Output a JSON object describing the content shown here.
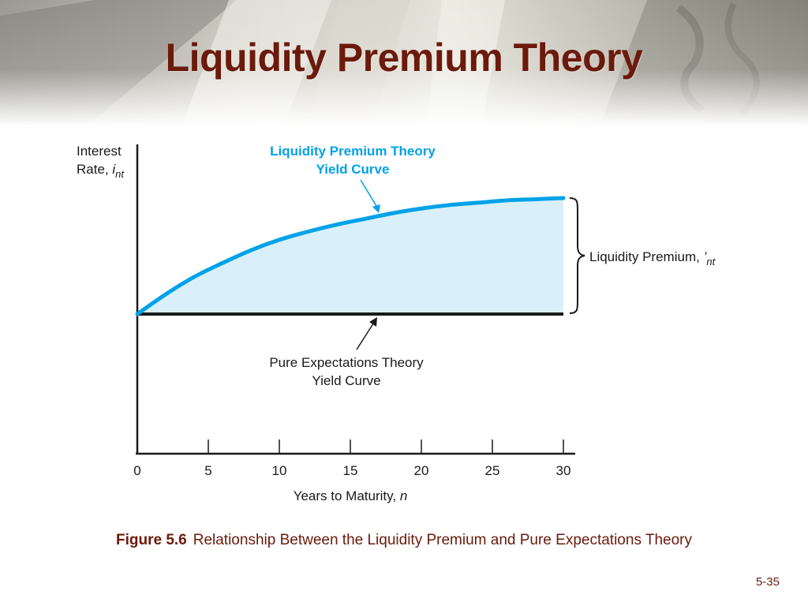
{
  "slide": {
    "title": "Liquidity Premium Theory",
    "caption_label": "Figure 5.6",
    "caption_text": "Relationship Between the Liquidity Premium and Pure Expectations Theory",
    "page_number": "5-35"
  },
  "colors": {
    "title": "#6b1a0c",
    "lp_curve": "#00a2e8",
    "lp_fill": "#d9f0fb",
    "pe_line": "#1a1a1a"
  },
  "chart_data": {
    "type": "line",
    "ylabel_line1": "Interest",
    "ylabel_line2_prefix": "Rate, ",
    "ylabel_var": "i",
    "ylabel_sub": "nt",
    "xlabel_prefix": "Years to Maturity, ",
    "xlabel_var": "n",
    "xlim": [
      0,
      30
    ],
    "ticks": [
      "0",
      "5",
      "10",
      "15",
      "20",
      "25",
      "30"
    ],
    "tick_values": [
      0,
      5,
      10,
      15,
      20,
      25,
      30
    ],
    "series": [
      {
        "name": "Liquidity Premium Theory Yield Curve",
        "label_line1": "Liquidity Premium Theory",
        "label_line2": "Yield Curve",
        "x": [
          0,
          2,
          4,
          6,
          8,
          10,
          12,
          14,
          16,
          18,
          20,
          22,
          24,
          26,
          28,
          30
        ],
        "y": [
          0.0,
          0.17,
          0.32,
          0.44,
          0.55,
          0.64,
          0.71,
          0.77,
          0.82,
          0.87,
          0.91,
          0.94,
          0.96,
          0.98,
          0.99,
          1.0
        ]
      },
      {
        "name": "Pure Expectations Theory Yield Curve",
        "label_line1": "Pure Expectations Theory",
        "label_line2": "Yield Curve",
        "x": [
          0,
          30
        ],
        "y": [
          0.0,
          0.0
        ]
      }
    ],
    "annotation": {
      "text": "Liquidity Premium, ",
      "var": "’",
      "sub": "nt"
    }
  }
}
